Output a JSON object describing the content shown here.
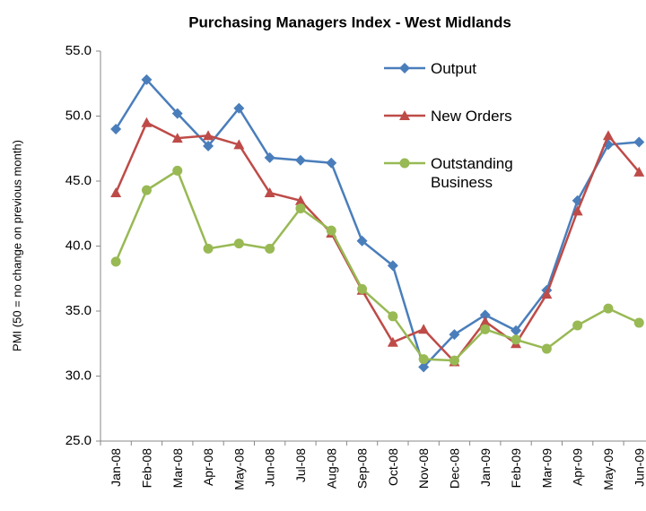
{
  "chart_data": {
    "type": "line",
    "title": "Purchasing Managers Index - West Midlands",
    "y_label": "PMI (50 = no change on previous month)",
    "categories": [
      "Jan-08",
      "Feb-08",
      "Mar-08",
      "Apr-08",
      "May-08",
      "Jun-08",
      "Jul-08",
      "Aug-08",
      "Sep-08",
      "Oct-08",
      "Nov-08",
      "Dec-08",
      "Jan-09",
      "Feb-09",
      "Mar-09",
      "Apr-09",
      "May-09",
      "Jun-09"
    ],
    "series": [
      {
        "name": "Output",
        "color": "#4a7ebb",
        "marker": "diamond",
        "values": [
          49.0,
          52.8,
          50.2,
          47.7,
          50.6,
          46.8,
          46.6,
          46.4,
          40.4,
          38.5,
          30.7,
          33.2,
          34.7,
          33.5,
          36.6,
          43.5,
          47.8,
          48.0
        ]
      },
      {
        "name": "New Orders",
        "color": "#be4b48",
        "marker": "triangle",
        "values": [
          44.1,
          49.5,
          48.3,
          48.5,
          47.8,
          44.1,
          43.5,
          41.0,
          36.6,
          32.6,
          33.6,
          31.1,
          34.2,
          32.5,
          36.3,
          42.7,
          48.5,
          45.7
        ]
      },
      {
        "name": "Outstanding Business",
        "color": "#98b954",
        "marker": "circle",
        "values": [
          38.8,
          44.3,
          45.8,
          39.8,
          40.2,
          39.8,
          42.9,
          41.2,
          36.7,
          34.6,
          31.3,
          31.2,
          33.6,
          32.8,
          32.1,
          33.9,
          35.2,
          34.1
        ]
      }
    ],
    "ylim": [
      25,
      55
    ],
    "yticks": [
      {
        "value": 25,
        "label": "25.0"
      },
      {
        "value": 30,
        "label": "30.0"
      },
      {
        "value": 35,
        "label": "35.0"
      },
      {
        "value": 40,
        "label": "40.0"
      },
      {
        "value": 45,
        "label": "45.0"
      },
      {
        "value": 50,
        "label": "50.0"
      },
      {
        "value": 55,
        "label": "55.0"
      }
    ],
    "legend": "top-right"
  }
}
